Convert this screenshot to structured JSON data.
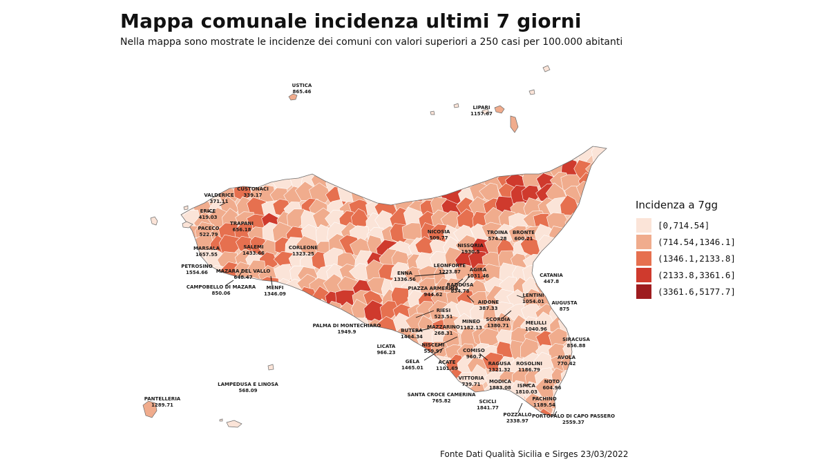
{
  "title": "Mappa comunale incidenza ultimi 7 giorni",
  "subtitle": "Nella mappa sono mostrate le incidenze dei comuni con valori superiori a 250 casi per 100.000 abitanti",
  "source": "Fonte Dati Qualità Sicilia e Sirges 23/03/2022",
  "legend": {
    "title": "Incidenza a 7gg",
    "classes": [
      {
        "label": "[0,714.54]",
        "color": "#fbe4d8"
      },
      {
        "label": "(714.54,1346.1]",
        "color": "#f0ac8d"
      },
      {
        "label": "(1346.1,2133.8]",
        "color": "#e6704f"
      },
      {
        "label": "(2133.8,3361.6]",
        "color": "#cf3a2d"
      },
      {
        "label": "(3361.6,5177.7]",
        "color": "#9e1c1f"
      }
    ]
  },
  "colors": {
    "border": "#ffffff",
    "outline": "#555555",
    "leader": "#111111"
  },
  "places": [
    {
      "name": "USTICA",
      "value": "865.46"
    },
    {
      "name": "LIPARI",
      "value": "1157.67"
    },
    {
      "name": "CUSTONACI",
      "value": "339.17"
    },
    {
      "name": "VALDERICE",
      "value": "371.11"
    },
    {
      "name": "ERICE",
      "value": "419.03"
    },
    {
      "name": "PACECO",
      "value": "522.79"
    },
    {
      "name": "TRAPANI",
      "value": "656.18"
    },
    {
      "name": "MARSALA",
      "value": "1657.55"
    },
    {
      "name": "SALEMI",
      "value": "1433.66"
    },
    {
      "name": "CORLEONE",
      "value": "1323.25"
    },
    {
      "name": "PETROSINO",
      "value": "1554.66"
    },
    {
      "name": "MAZARA DEL VALLO",
      "value": "648.47"
    },
    {
      "name": "CAMPOBELLO DI MAZARA",
      "value": "850.06"
    },
    {
      "name": "MENFI",
      "value": "1346.09"
    },
    {
      "name": "NICOSIA",
      "value": "509.77"
    },
    {
      "name": "TROINA",
      "value": "574.28"
    },
    {
      "name": "BRONTE",
      "value": "600.21"
    },
    {
      "name": "NISSORIA",
      "value": "1930.5"
    },
    {
      "name": "LEONFORTE",
      "value": "1223.87"
    },
    {
      "name": "AGIRA",
      "value": "1031.46"
    },
    {
      "name": "ENNA",
      "value": "1336.56"
    },
    {
      "name": "RADDUSA",
      "value": "834.78"
    },
    {
      "name": "PIAZZA ARMERINA",
      "value": "944.62"
    },
    {
      "name": "CATANIA",
      "value": "447.8"
    },
    {
      "name": "LENTINI",
      "value": "1054.01"
    },
    {
      "name": "AUGUSTA",
      "value": "875"
    },
    {
      "name": "AIDONE",
      "value": "387.33"
    },
    {
      "name": "RIESI",
      "value": "523.51"
    },
    {
      "name": "MINEO",
      "value": "1182.13"
    },
    {
      "name": "SCORDIA",
      "value": "1380.71"
    },
    {
      "name": "MELILLI",
      "value": "1040.96"
    },
    {
      "name": "PALMA DI MONTECHIARO",
      "value": "1949.9"
    },
    {
      "name": "BUTERA",
      "value": "1464.34"
    },
    {
      "name": "MAZZARINO",
      "value": "268.31"
    },
    {
      "name": "SIRACUSA",
      "value": "856.88"
    },
    {
      "name": "LICATA",
      "value": "966.23"
    },
    {
      "name": "NISCEMI",
      "value": "559.97"
    },
    {
      "name": "COMISO",
      "value": "960.7"
    },
    {
      "name": "AVOLA",
      "value": "770.42"
    },
    {
      "name": "GELA",
      "value": "1465.01"
    },
    {
      "name": "ACATE",
      "value": "1101.69"
    },
    {
      "name": "RAGUSA",
      "value": "1321.32"
    },
    {
      "name": "ROSOLINI",
      "value": "1186.79"
    },
    {
      "name": "VITTORIA",
      "value": "739.71"
    },
    {
      "name": "MODICA",
      "value": "1883.08"
    },
    {
      "name": "ISPICA",
      "value": "1810.03"
    },
    {
      "name": "NOTO",
      "value": "604.96"
    },
    {
      "name": "LAMPEDUSA E LINOSA",
      "value": "568.09"
    },
    {
      "name": "SANTA CROCE CAMERINA",
      "value": "765.82"
    },
    {
      "name": "PANTELLERIA",
      "value": "1289.71"
    },
    {
      "name": "SCICLI",
      "value": "1841.77"
    },
    {
      "name": "PACHINO",
      "value": "1189.54"
    },
    {
      "name": "POZZALLO",
      "value": "2338.97"
    },
    {
      "name": "PORTOPALO DI CAPO PASSERO",
      "value": "2559.37"
    }
  ]
}
